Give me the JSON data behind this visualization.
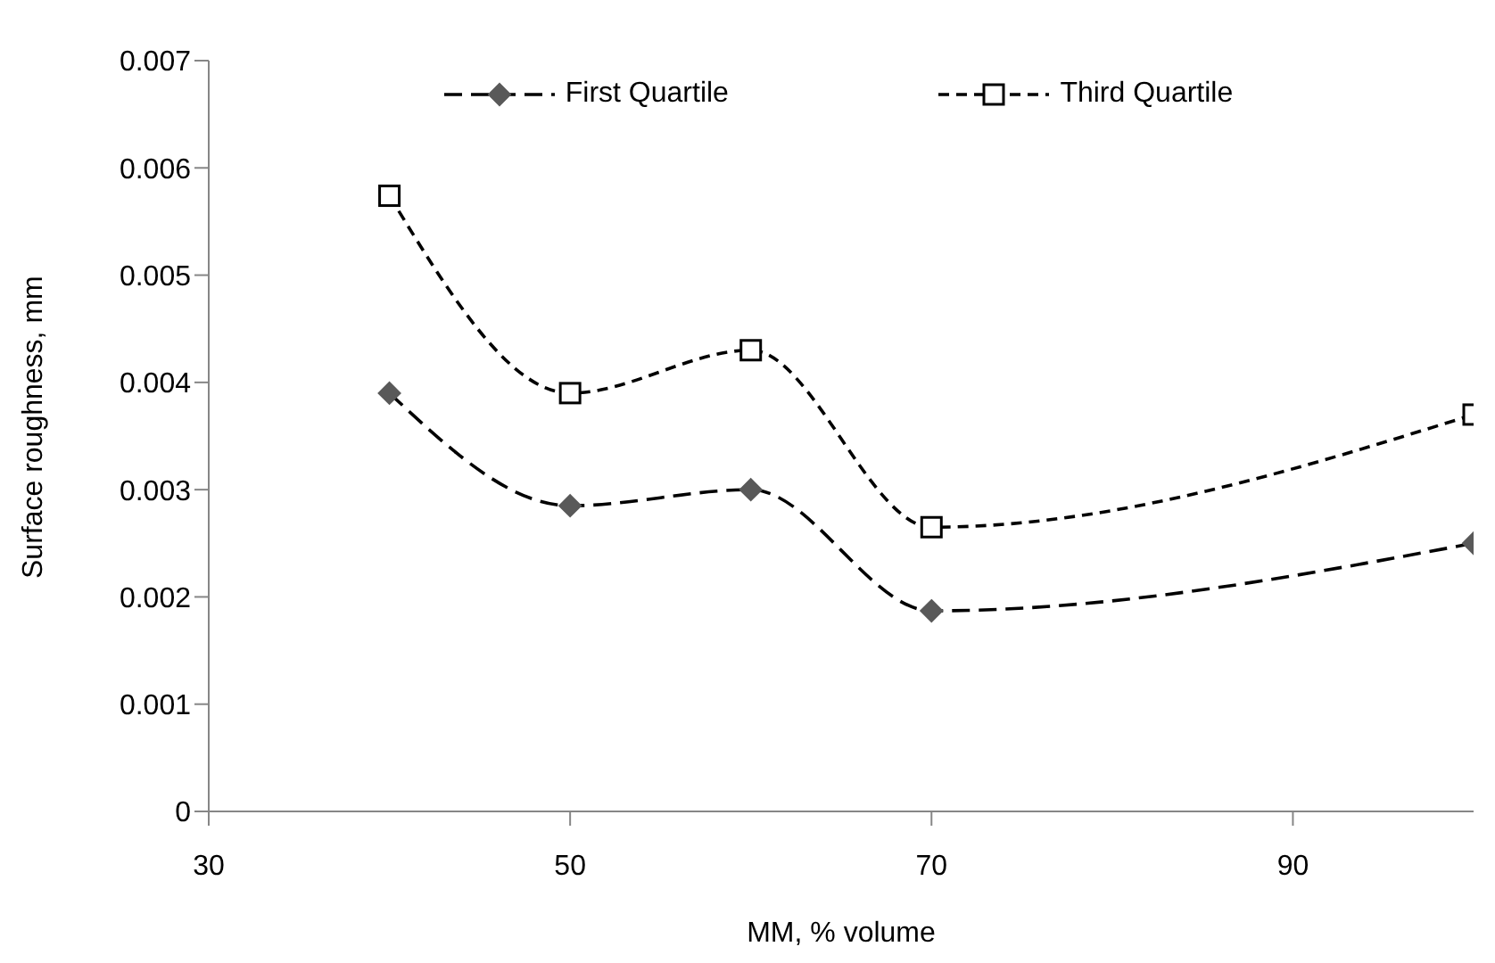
{
  "chart_data": {
    "type": "line",
    "xlabel": "MM, % volume",
    "ylabel": "Surface roughness,  mm",
    "x": [
      40,
      50,
      60,
      70,
      100
    ],
    "series": [
      {
        "name": "First Quartile",
        "color": "#595959",
        "values": [
          0.0039,
          0.00285,
          0.003,
          0.00187,
          0.0025
        ],
        "marker": "diamond",
        "line_style": "dashed"
      },
      {
        "name": "Third Quartile",
        "color": "#000000",
        "values": [
          0.00574,
          0.0039,
          0.0043,
          0.00265,
          0.0037
        ],
        "marker": "square",
        "line_style": "dashed"
      }
    ],
    "xlim": [
      30,
      100
    ],
    "xticks": [
      30,
      50,
      70,
      90
    ],
    "ylim": [
      0,
      0.007
    ],
    "yticks": [
      0,
      0.001,
      0.002,
      0.003,
      0.004,
      0.005,
      0.006,
      0.007
    ],
    "grid": false,
    "legend": "top"
  }
}
